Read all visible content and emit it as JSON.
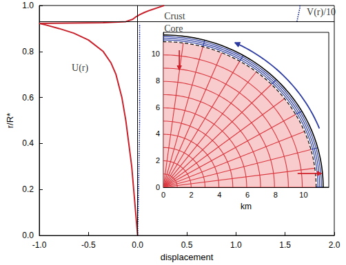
{
  "chart_data": {
    "type": "line",
    "xlabel": "displacement",
    "ylabel": "r/R*",
    "xlim": [
      -1.0,
      2.0
    ],
    "xticks": [
      {
        "value": -1.0,
        "label": "-1.0"
      },
      {
        "value": -0.5,
        "label": "-0.5"
      },
      {
        "value": 0,
        "label": "0.0"
      },
      {
        "value": 0.5,
        "label": "0.5"
      },
      {
        "value": 1.0,
        "label": "1.0"
      },
      {
        "value": 1.5,
        "label": "1.5"
      },
      {
        "value": 2.0,
        "label": "2.0"
      }
    ],
    "ylim": [
      0.0,
      1.0
    ],
    "yticks": [
      {
        "value": 0,
        "label": "0.0"
      },
      {
        "value": 0.2,
        "label": "0.2"
      },
      {
        "value": 0.4,
        "label": "0.4"
      },
      {
        "value": 0.6,
        "label": "0.6"
      },
      {
        "value": 0.8,
        "label": "0.8"
      },
      {
        "value": 1.0,
        "label": "1.0"
      }
    ],
    "grid": false,
    "crust_core_boundary": 0.925,
    "zero_line": 0,
    "series": [
      {
        "name": "U(r)",
        "color": "#c8202a",
        "line_style": "solid",
        "label_position": [
          -0.67,
          0.73
        ],
        "x": [
          0,
          -0.02,
          -0.04,
          -0.06,
          -0.09,
          -0.12,
          -0.16,
          -0.22,
          -0.27,
          -0.35,
          -0.5,
          -0.65,
          -0.8,
          -0.93,
          -1.0,
          -0.35,
          -0.12,
          -0.05,
          -0.02,
          0.0,
          0.02,
          0.07,
          0.13,
          0.2,
          0.27
        ],
        "y": [
          0,
          0.1,
          0.2,
          0.3,
          0.4,
          0.5,
          0.6,
          0.7,
          0.75,
          0.8,
          0.85,
          0.88,
          0.9,
          0.915,
          0.922,
          0.925,
          0.93,
          0.94,
          0.95,
          0.955,
          0.96,
          0.97,
          0.98,
          0.99,
          1.0
        ]
      },
      {
        "name": "V(r)/10",
        "color": "#1a2a8c",
        "line_style": "dotted",
        "label_position": [
          1.72,
          0.972
        ],
        "x": [
          0,
          0.01,
          0.02,
          0.02,
          0.02,
          0.02,
          null,
          1.62,
          1.63,
          1.64,
          1.65,
          1.65
        ],
        "y": [
          0,
          0.2,
          0.5,
          0.8,
          0.9,
          0.92,
          null,
          0.93,
          0.95,
          0.97,
          0.99,
          1.0
        ]
      }
    ],
    "annotations": [
      {
        "text": "Crust",
        "x": 0.27,
        "y": 0.955
      },
      {
        "text": "Core",
        "x": 0.27,
        "y": 0.9
      }
    ],
    "inset": {
      "xlabel": "km",
      "xlim": [
        0,
        11.8
      ],
      "ylim": [
        0,
        11.6
      ],
      "xticks": [
        0,
        2,
        4,
        6,
        8,
        10
      ],
      "yticks": [
        0,
        2,
        4,
        6,
        8,
        10
      ],
      "core_radius": 10.9,
      "radius": 11.4
    }
  }
}
